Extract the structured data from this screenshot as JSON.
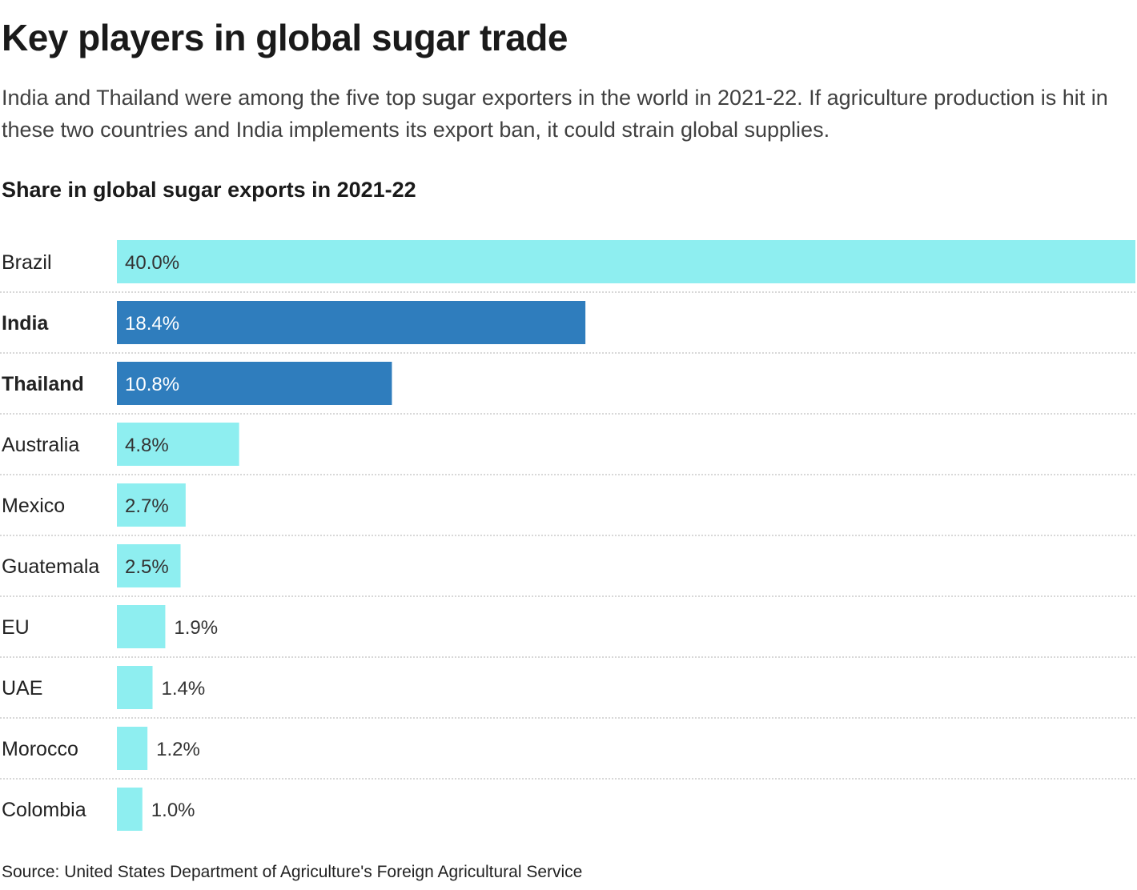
{
  "header": {
    "title": "Key players in global sugar trade",
    "subtitle": "India and Thailand were among the five top sugar exporters in the world in 2021-22. If agriculture production is hit in these two countries and India implements its export ban, it could strain global supplies."
  },
  "footer": {
    "source": "Source: United States Department of Agriculture's Foreign Agricultural Service"
  },
  "colors": {
    "default_bar": "#8eeef0",
    "highlight_bar": "#2f7dbd",
    "separator": "#cccccc"
  },
  "chart_data": {
    "type": "bar",
    "orientation": "horizontal",
    "title": "Share in global sugar exports in 2021-22",
    "xlabel": "",
    "ylabel": "",
    "unit": "%",
    "xlim": [
      0,
      40
    ],
    "grid": false,
    "categories": [
      "Brazil",
      "India",
      "Thailand",
      "Australia",
      "Mexico",
      "Guatemala",
      "EU",
      "UAE",
      "Morocco",
      "Colombia"
    ],
    "values": [
      40.0,
      18.4,
      10.8,
      4.8,
      2.7,
      2.5,
      1.9,
      1.4,
      1.2,
      1.0
    ],
    "labels": [
      "40.0%",
      "18.4%",
      "10.8%",
      "4.8%",
      "2.7%",
      "2.5%",
      "1.9%",
      "1.4%",
      "1.2%",
      "1.0%"
    ],
    "highlighted": [
      "India",
      "Thailand"
    ]
  }
}
